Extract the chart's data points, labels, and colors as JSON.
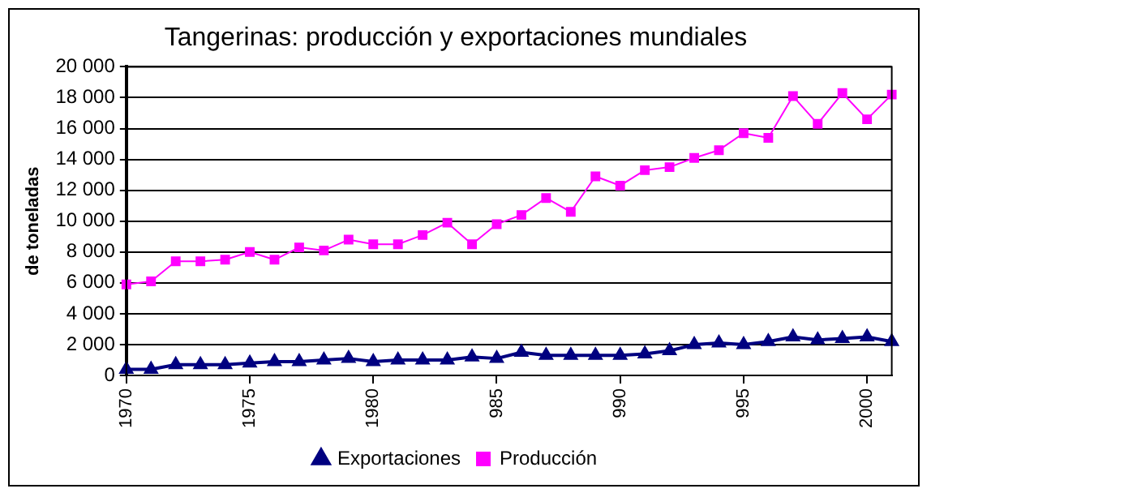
{
  "chart_data": {
    "type": "line",
    "title": "Tangerinas: producción y exportaciones mundiales",
    "ylabel": "de toneladas",
    "categories": [
      "1970",
      null,
      null,
      null,
      null,
      "1975",
      null,
      null,
      null,
      null,
      "1980",
      null,
      null,
      null,
      null,
      "985",
      null,
      null,
      null,
      null,
      "990",
      null,
      null,
      null,
      null,
      "995",
      null,
      null,
      null,
      null,
      "2000",
      null
    ],
    "series": [
      {
        "name": "Exportaciones",
        "color": "#000080",
        "marker": "triangle",
        "values": [
          400,
          400,
          700,
          700,
          700,
          800,
          900,
          900,
          1000,
          1100,
          900,
          1000,
          1000,
          1000,
          1200,
          1100,
          1500,
          1300,
          1300,
          1300,
          1300,
          1400,
          1600,
          2000,
          2100,
          2000,
          2200,
          2500,
          2300,
          2400,
          2500,
          2200
        ]
      },
      {
        "name": "Producción",
        "color": "#ff00ff",
        "marker": "square",
        "values": [
          5900,
          6100,
          7400,
          7400,
          7500,
          8000,
          7500,
          8300,
          8100,
          8800,
          8500,
          8500,
          9100,
          9900,
          8500,
          9800,
          10400,
          11500,
          10600,
          12900,
          12300,
          13300,
          13500,
          14100,
          14600,
          15700,
          15400,
          18100,
          16300,
          18300,
          16600,
          18200
        ]
      }
    ],
    "ylim": [
      0,
      20000
    ],
    "yticks": [
      {
        "value": 0,
        "label": "0"
      },
      {
        "value": 2000,
        "label": "2 000"
      },
      {
        "value": 4000,
        "label": "4 000"
      },
      {
        "value": 6000,
        "label": "6 000"
      },
      {
        "value": 8000,
        "label": "8 000"
      },
      {
        "value": 10000,
        "label": "10 000"
      },
      {
        "value": 12000,
        "label": "12 000"
      },
      {
        "value": 14000,
        "label": "14 000"
      },
      {
        "value": 16000,
        "label": "16 000"
      },
      {
        "value": 18000,
        "label": "18 000"
      },
      {
        "value": 20000,
        "label": "20 000"
      }
    ],
    "grid": "y",
    "legend": "bottom",
    "line_style": "solid"
  }
}
